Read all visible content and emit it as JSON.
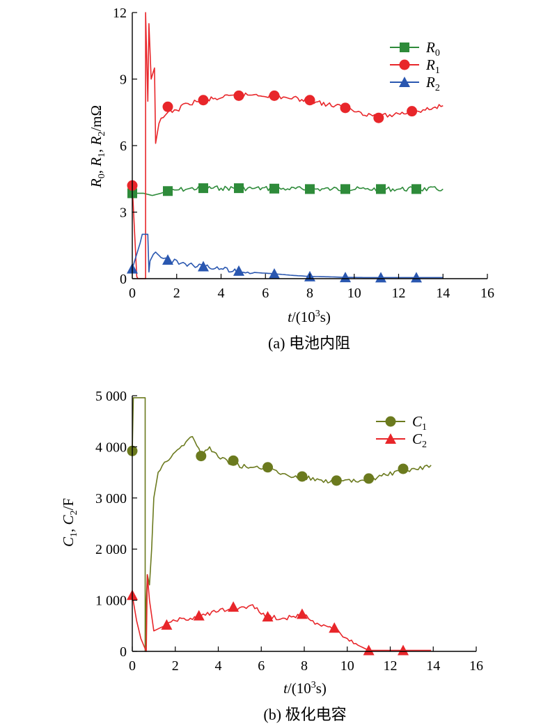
{
  "chart_data": [
    {
      "type": "line",
      "caption": "(a) 电池内阻",
      "xlabel": "t/(10³s)",
      "ylabel": "R0, R1, R2/mΩ",
      "xlim": [
        0,
        16
      ],
      "ylim": [
        0,
        12
      ],
      "xticks": [
        "0",
        "2",
        "4",
        "6",
        "8",
        "10",
        "12",
        "14",
        "16"
      ],
      "yticks": [
        "0",
        "3",
        "6",
        "9",
        "12"
      ],
      "legend_position": "top-right",
      "series": [
        {
          "name": "R0",
          "color": "#2e8b3a",
          "marker": "square",
          "x": [
            0,
            0.5,
            0.9,
            1.3,
            1.6,
            2.0,
            2.5,
            3.2,
            4.0,
            4.8,
            5.5,
            6.4,
            7.0,
            8.0,
            9.0,
            9.6,
            10.5,
            11.2,
            12.0,
            12.8,
            14.0
          ],
          "y": [
            3.85,
            3.85,
            3.75,
            3.85,
            3.95,
            4.0,
            4.05,
            4.08,
            4.08,
            4.08,
            4.07,
            4.06,
            4.05,
            4.04,
            4.04,
            4.04,
            4.04,
            4.04,
            4.04,
            4.04,
            4.04
          ]
        },
        {
          "name": "R1",
          "color": "#e8262a",
          "marker": "circle",
          "x": [
            0,
            0.2,
            0.25,
            0.6,
            0.6,
            0.7,
            0.75,
            0.85,
            1.0,
            1.05,
            1.2,
            1.6,
            2.0,
            2.5,
            3.2,
            4.0,
            4.8,
            5.5,
            6.4,
            7.0,
            8.0,
            8.8,
            9.6,
            10.3,
            11.1,
            11.8,
            12.6,
            13.2,
            14.0
          ],
          "y": [
            4.2,
            0.1,
            0.0,
            0.0,
            12.0,
            8.0,
            11.5,
            9.0,
            9.5,
            6.1,
            7.0,
            7.5,
            7.6,
            7.9,
            8.05,
            8.15,
            8.25,
            8.3,
            8.25,
            8.15,
            8.05,
            7.85,
            7.7,
            7.5,
            7.3,
            7.4,
            7.55,
            7.6,
            7.8
          ]
        },
        {
          "name": "R2",
          "color": "#2a57b0",
          "marker": "triangle",
          "x": [
            0,
            0.35,
            0.45,
            0.7,
            0.75,
            0.8,
            0.95,
            1.05,
            1.3,
            1.6,
            2.2,
            3.2,
            4.0,
            4.8,
            5.5,
            6.4,
            7.2,
            8.0,
            9.0,
            9.6,
            10.5,
            11.2,
            12.0,
            12.8,
            14.0
          ],
          "y": [
            0.45,
            1.6,
            2.0,
            2.0,
            0.3,
            0.8,
            1.1,
            1.2,
            0.95,
            0.85,
            0.7,
            0.55,
            0.45,
            0.35,
            0.28,
            0.22,
            0.15,
            0.1,
            0.08,
            0.06,
            0.05,
            0.05,
            0.05,
            0.05,
            0.05
          ]
        }
      ],
      "markers": [
        {
          "series": "R0",
          "x": [
            0,
            1.6,
            3.2,
            4.8,
            6.4,
            8.0,
            9.6,
            11.2,
            12.8
          ],
          "y": [
            3.85,
            3.95,
            4.08,
            4.08,
            4.06,
            4.04,
            4.04,
            4.04,
            4.04
          ]
        },
        {
          "series": "R1",
          "x": [
            0,
            1.6,
            3.2,
            4.8,
            6.4,
            8.0,
            9.6,
            11.1,
            12.6
          ],
          "y": [
            4.2,
            7.75,
            8.05,
            8.25,
            8.25,
            8.05,
            7.7,
            7.25,
            7.55
          ]
        },
        {
          "series": "R2",
          "x": [
            0,
            1.6,
            3.2,
            4.8,
            6.4,
            8.0,
            9.6,
            11.2,
            12.8
          ],
          "y": [
            0.45,
            0.85,
            0.55,
            0.35,
            0.22,
            0.1,
            0.06,
            0.05,
            0.05
          ]
        }
      ]
    },
    {
      "type": "line",
      "caption": "(b) 极化电容",
      "xlabel": "t/(10³s)",
      "ylabel": "C1, C2/F",
      "xlim": [
        0,
        16
      ],
      "ylim": [
        0,
        5000
      ],
      "xticks": [
        "0",
        "2",
        "4",
        "6",
        "8",
        "10",
        "12",
        "14",
        "16"
      ],
      "yticks": [
        "0",
        "1 000",
        "2 000",
        "3 000",
        "4 000",
        "5 000"
      ],
      "legend_position": "top-right",
      "series": [
        {
          "name": "C1",
          "color": "#6b7a1e",
          "marker": "circle",
          "x": [
            0,
            0.05,
            0.1,
            0.6,
            0.6,
            0.65,
            0.7,
            0.8,
            0.9,
            1.0,
            1.2,
            1.5,
            2.0,
            2.5,
            2.8,
            3.2,
            3.6,
            4.0,
            4.8,
            5.5,
            6.4,
            7.2,
            8.0,
            8.8,
            9.6,
            10.4,
            11.1,
            11.8,
            12.6,
            13.2,
            13.9
          ],
          "y": [
            3920,
            4960,
            4960,
            4960,
            0,
            1000,
            1500,
            1300,
            2000,
            3000,
            3500,
            3700,
            3900,
            4100,
            4200,
            3850,
            4000,
            3800,
            3650,
            3600,
            3550,
            3450,
            3400,
            3350,
            3320,
            3320,
            3380,
            3450,
            3520,
            3560,
            3640
          ]
        },
        {
          "name": "C2",
          "color": "#e8262a",
          "marker": "triangle",
          "x": [
            0,
            0.2,
            0.4,
            0.6,
            0.65,
            0.7,
            0.8,
            0.9,
            1.0,
            1.6,
            2.0,
            3.2,
            4.0,
            4.8,
            5.5,
            6.3,
            7.0,
            7.9,
            8.6,
            9.4,
            10.0,
            10.5,
            11.0,
            12.0,
            12.6,
            13.9
          ],
          "y": [
            1100,
            600,
            250,
            50,
            0,
            1500,
            1000,
            700,
            400,
            520,
            600,
            700,
            780,
            850,
            900,
            680,
            650,
            720,
            550,
            450,
            250,
            120,
            20,
            20,
            20,
            20
          ]
        }
      ],
      "markers": [
        {
          "series": "C1",
          "x": [
            0,
            3.2,
            4.7,
            6.3,
            7.9,
            9.5,
            11.0,
            12.6
          ],
          "y": [
            3920,
            3820,
            3730,
            3600,
            3420,
            3340,
            3380,
            3570
          ]
        },
        {
          "series": "C2",
          "x": [
            0,
            1.6,
            3.1,
            4.7,
            6.3,
            7.9,
            9.4,
            11.0,
            12.6
          ],
          "y": [
            1100,
            520,
            700,
            870,
            680,
            730,
            460,
            20,
            20
          ]
        }
      ]
    }
  ]
}
